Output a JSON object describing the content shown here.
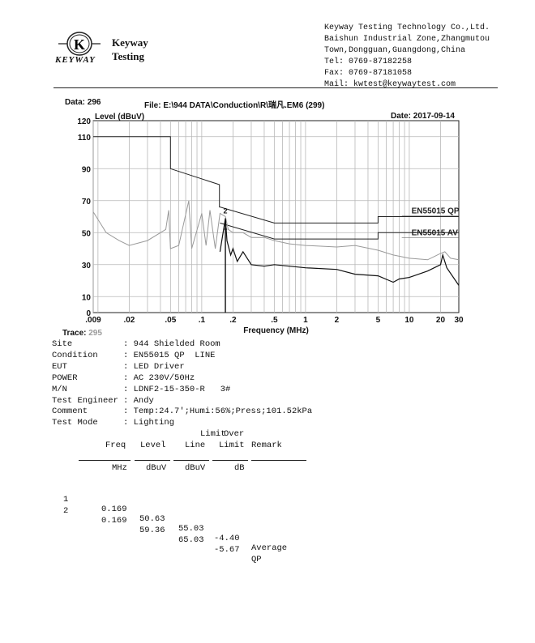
{
  "header": {
    "logo_letter": "K",
    "logo_brand": "KEYWAY",
    "logo_name_line1": "Keyway",
    "logo_name_line2": "Testing",
    "address_lines": [
      "Keyway Testing Technology Co.,Ltd.",
      "Baishun Industrial Zone,Zhangmutou",
      "Town,Dongguan,Guangdong,China",
      "Tel: 0769-87182258",
      "Fax: 0769-87181058",
      "Mail: kwtest@keywaytest.com"
    ]
  },
  "report": {
    "data_label": "Data: 296",
    "file_label": "File: E:\\944 DATA\\Conduction\\R\\瑞凡.EM6  (299)",
    "date_label": "Date: 2017-09-14",
    "trace_label": "Trace:",
    "trace_value": "295"
  },
  "chart_data": {
    "type": "line",
    "ylabel": "Level (dBuV)",
    "xlabel": "Frequency (MHz)",
    "x_scale": "log",
    "xlim": [
      0.009,
      30
    ],
    "ylim": [
      0,
      120
    ],
    "x_ticks": [
      0.009,
      0.02,
      0.05,
      0.1,
      0.2,
      0.5,
      1,
      2,
      5,
      10,
      20,
      30
    ],
    "x_tick_labels": [
      ".009",
      ".02",
      ".05",
      ".1",
      ".2",
      ".5",
      "1",
      "2",
      "5",
      "10",
      "20",
      "30"
    ],
    "y_ticks": [
      0,
      10,
      30,
      50,
      70,
      90,
      110,
      120
    ],
    "y_tick_labels": [
      "0",
      "10",
      "30",
      "50",
      "70",
      "90",
      "110",
      "120"
    ],
    "grid": true,
    "limit_labels": [
      "EN55015 QP",
      "EN55015 AV"
    ],
    "marker_labels": [
      "1",
      "2"
    ],
    "series": [
      {
        "name": "EN55015 QP",
        "color": "#222222",
        "x": [
          0.009,
          0.05,
          0.05,
          0.148,
          0.148,
          0.15,
          0.5,
          5,
          5,
          30
        ],
        "y": [
          110,
          110,
          90,
          80,
          66,
          66,
          56,
          56,
          60,
          60
        ]
      },
      {
        "name": "EN55015 AV",
        "color": "#222222",
        "x": [
          0.15,
          0.5,
          5,
          5,
          30
        ],
        "y": [
          56,
          46,
          46,
          50,
          50
        ]
      },
      {
        "color": "#9a9a9a",
        "x": [
          0.009,
          0.012,
          0.016,
          0.02,
          0.03,
          0.045,
          0.048,
          0.05,
          0.06,
          0.075,
          0.08,
          0.1,
          0.11,
          0.12,
          0.135,
          0.15,
          0.169,
          0.18,
          0.2,
          0.25,
          0.3,
          0.4,
          0.5,
          0.7,
          1,
          2,
          3,
          5,
          7,
          10,
          15,
          20,
          22,
          25,
          30
        ],
        "y": [
          63,
          50,
          45,
          42,
          45,
          52,
          64,
          40,
          42,
          70,
          40,
          62,
          42,
          64,
          40,
          62,
          60,
          52,
          50,
          50,
          47,
          47,
          45,
          43,
          42,
          41,
          42,
          39,
          36,
          34,
          33,
          37,
          38,
          34,
          33
        ]
      },
      {
        "color": "#111111",
        "x": [
          0.15,
          0.169,
          0.175,
          0.19,
          0.2,
          0.22,
          0.25,
          0.3,
          0.4,
          0.5,
          0.7,
          1,
          2,
          3,
          5,
          7,
          8,
          10,
          15,
          20,
          21,
          23,
          30
        ],
        "y": [
          38,
          59,
          45,
          36,
          40,
          32,
          38,
          30,
          29,
          30,
          29,
          28,
          27,
          24,
          23,
          19,
          21,
          22,
          26,
          30,
          36,
          28,
          17
        ]
      }
    ]
  },
  "details": [
    {
      "label": "Site",
      "value": "944 Shielded Room"
    },
    {
      "label": "Condition",
      "value": "EN55015 QP  LINE"
    },
    {
      "label": "EUT",
      "value": "LED Driver"
    },
    {
      "label": "POWER",
      "value": "AC 230V/50Hz"
    },
    {
      "label": "M/N",
      "value": "LDNF2-15-350-R   3#"
    },
    {
      "label": "Test Engineer",
      "value": "Andy"
    },
    {
      "label": "Comment",
      "value": "Temp:24.7';Humi:56%;Press;101.52kPa"
    },
    {
      "label": "Test Mode",
      "value": "Lighting"
    }
  ],
  "table": {
    "head_line1": [
      "",
      "",
      "Limit",
      "Over",
      ""
    ],
    "head_line2": [
      "Freq",
      "Level",
      "Line",
      "Limit",
      "Remark"
    ],
    "units": [
      "MHz",
      "dBuV",
      "dBuV",
      "dB",
      ""
    ],
    "rows": [
      {
        "no": "1",
        "cells": [
          "0.169",
          "50.63",
          "55.03",
          "-4.40",
          "Average"
        ]
      },
      {
        "no": "2",
        "cells": [
          "0.169",
          "59.36",
          "65.03",
          "-5.67",
          "QP"
        ]
      }
    ]
  }
}
